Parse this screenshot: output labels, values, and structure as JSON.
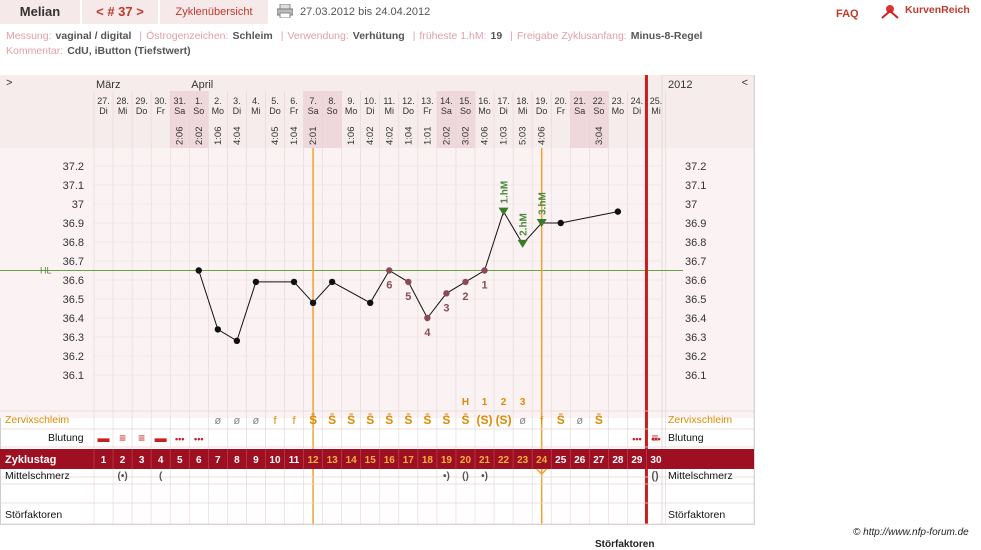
{
  "header": {
    "name": "Melian",
    "cycle_nav": "< # 37 >",
    "overview_tab": "Zyklenübersicht",
    "date_range": "27.03.2012 bis 24.04.2012",
    "faq": "FAQ",
    "brand": "KurvenReich"
  },
  "meta": {
    "row1": [
      {
        "k": "Messung:",
        "v": "vaginal / digital"
      },
      {
        "k": "Östrogenzeichen:",
        "v": "Schleim"
      },
      {
        "k": "Verwendung:",
        "v": "Verhütung"
      },
      {
        "k": "früheste 1.hM:",
        "v": "19"
      },
      {
        "k": "Freigabe Zyklusanfang:",
        "v": "Minus-8-Regel"
      }
    ],
    "row2": [
      {
        "k": "Kommentar:",
        "v": "CdU, iButton (Tiefstwert)"
      }
    ]
  },
  "date_header": {
    "left_arrow": ">",
    "right_arrow": "<",
    "year": "2012",
    "month_labels": [
      "März",
      "April"
    ]
  },
  "days": [
    {
      "d": "27.",
      "w": "Di",
      "t": ""
    },
    {
      "d": "28.",
      "w": "Mi",
      "t": ""
    },
    {
      "d": "29.",
      "w": "Do",
      "t": ""
    },
    {
      "d": "30.",
      "w": "Fr",
      "t": ""
    },
    {
      "d": "31.",
      "w": "Sa",
      "t": "2:06"
    },
    {
      "d": "1.",
      "w": "So",
      "t": "2:02"
    },
    {
      "d": "2.",
      "w": "Mo",
      "t": "1:06"
    },
    {
      "d": "3.",
      "w": "Di",
      "t": "4:04"
    },
    {
      "d": "4.",
      "w": "Mi",
      "t": ""
    },
    {
      "d": "5.",
      "w": "Do",
      "t": "4:05"
    },
    {
      "d": "6.",
      "w": "Fr",
      "t": "1:04"
    },
    {
      "d": "7.",
      "w": "Sa",
      "t": "2:01"
    },
    {
      "d": "8.",
      "w": "So",
      "t": ""
    },
    {
      "d": "9.",
      "w": "Mo",
      "t": "1:06"
    },
    {
      "d": "10.",
      "w": "Di",
      "t": "4:02"
    },
    {
      "d": "11.",
      "w": "Mi",
      "t": "4:02"
    },
    {
      "d": "12.",
      "w": "Do",
      "t": "1:04"
    },
    {
      "d": "13.",
      "w": "Fr",
      "t": "1:01"
    },
    {
      "d": "14.",
      "w": "Sa",
      "t": "2:02"
    },
    {
      "d": "15.",
      "w": "So",
      "t": "3:02"
    },
    {
      "d": "16.",
      "w": "Mo",
      "t": "4:06"
    },
    {
      "d": "17.",
      "w": "Di",
      "t": "1:03"
    },
    {
      "d": "18.",
      "w": "Mi",
      "t": "5:03"
    },
    {
      "d": "19.",
      "w": "Do",
      "t": "4:06"
    },
    {
      "d": "20.",
      "w": "Fr",
      "t": ""
    },
    {
      "d": "21.",
      "w": "Sa",
      "t": ""
    },
    {
      "d": "22.",
      "w": "So",
      "t": "3:04"
    },
    {
      "d": "23.",
      "w": "Mo",
      "t": ""
    },
    {
      "d": "24.",
      "w": "Di",
      "t": ""
    },
    {
      "d": "25.",
      "w": "Mi",
      "t": ""
    }
  ],
  "chart_data": {
    "type": "line",
    "x_cycle_day": [
      6,
      7,
      8,
      9,
      11,
      12,
      13,
      15,
      16,
      17,
      18,
      19,
      20,
      21,
      22,
      23,
      24,
      25,
      28
    ],
    "y_temperature": [
      36.65,
      36.34,
      36.28,
      36.59,
      36.59,
      36.48,
      36.59,
      36.48,
      36.65,
      36.59,
      36.4,
      36.53,
      36.59,
      36.65,
      36.96,
      36.79,
      36.9,
      36.9,
      36.96
    ],
    "ylim": [
      36.0,
      37.3
    ],
    "yticks": [
      "37.2",
      "37.1",
      "37",
      "36.9",
      "36.8",
      "36.7",
      "36.6",
      "36.5",
      "36.4",
      "36.3",
      "36.2",
      "36.1"
    ],
    "hl_label": "HL",
    "hl_value": 36.65,
    "low_labels": [
      {
        "day": 16,
        "label": "6"
      },
      {
        "day": 17,
        "label": "5"
      },
      {
        "day": 18,
        "label": "4"
      },
      {
        "day": 19,
        "label": "3"
      },
      {
        "day": 20,
        "label": "2"
      },
      {
        "day": 21,
        "label": "1"
      }
    ],
    "high_labels": [
      {
        "day": 22,
        "label": "1.hM"
      },
      {
        "day": 23,
        "label": "2.hM"
      },
      {
        "day": 24,
        "label": "3.hM"
      }
    ],
    "vline_days": [
      11.5,
      23.5
    ],
    "period_line_day": 29.5
  },
  "cycle_days": [
    "1",
    "2",
    "3",
    "4",
    "5",
    "6",
    "7",
    "8",
    "9",
    "10",
    "11",
    "12",
    "13",
    "14",
    "15",
    "16",
    "17",
    "18",
    "19",
    "20",
    "21",
    "22",
    "23",
    "24",
    "25",
    "26",
    "27",
    "28",
    "29",
    "30"
  ],
  "rows": {
    "zervix_label": "Zervixschleim",
    "blutung_label": "Blutung",
    "zyklustag_label": "Zyklustag",
    "mittelschmerz_label": "Mittelschmerz",
    "stoerfaktoren_label": "Störfaktoren",
    "zervix_marks": [
      "",
      "",
      "",
      "",
      "",
      "",
      "ø",
      "ø",
      "ø",
      "f",
      "f",
      "S̄",
      "S̄",
      "S̄",
      "S̄",
      "S̄",
      "S̄",
      "S̄",
      "S̄",
      "S̄",
      "(S)",
      "(S)",
      "ø",
      "f",
      "S̄",
      "ø",
      "S̄",
      "",
      "",
      ""
    ],
    "zervix_top": [
      {
        "day": 20,
        "label": "H"
      },
      {
        "day": 21,
        "label": "1"
      },
      {
        "day": 22,
        "label": "2"
      },
      {
        "day": 23,
        "label": "3"
      }
    ],
    "blutung_marks": [
      "▬",
      "≡",
      "≡",
      "▬",
      "•••",
      "•••",
      "",
      "",
      "",
      "",
      "",
      "",
      "",
      "",
      "",
      "",
      "",
      "",
      "",
      "",
      "",
      "",
      "",
      "",
      "",
      "",
      "",
      "",
      "•••",
      "•••"
    ],
    "mittelschmerz_marks": [
      "",
      "(•)",
      "",
      "(",
      "",
      "",
      "",
      "",
      "",
      "",
      "",
      "",
      "",
      "",
      "",
      "",
      "",
      "",
      "•)",
      "()",
      "•)",
      "",
      "",
      "",
      "",
      "",
      "",
      "",
      "",
      ""
    ]
  },
  "right_period": {
    "cycle_day": "30"
  },
  "footer": {
    "credit": "© http://www.nfp-forum.de",
    "cut_label": "Störfaktoren"
  },
  "colors": {
    "accent": "#c0392b",
    "orange": "#e08a00",
    "green": "#5a8a3a",
    "pink_bg": "#f7ecec",
    "maroon_bar": "#9e0f22"
  }
}
